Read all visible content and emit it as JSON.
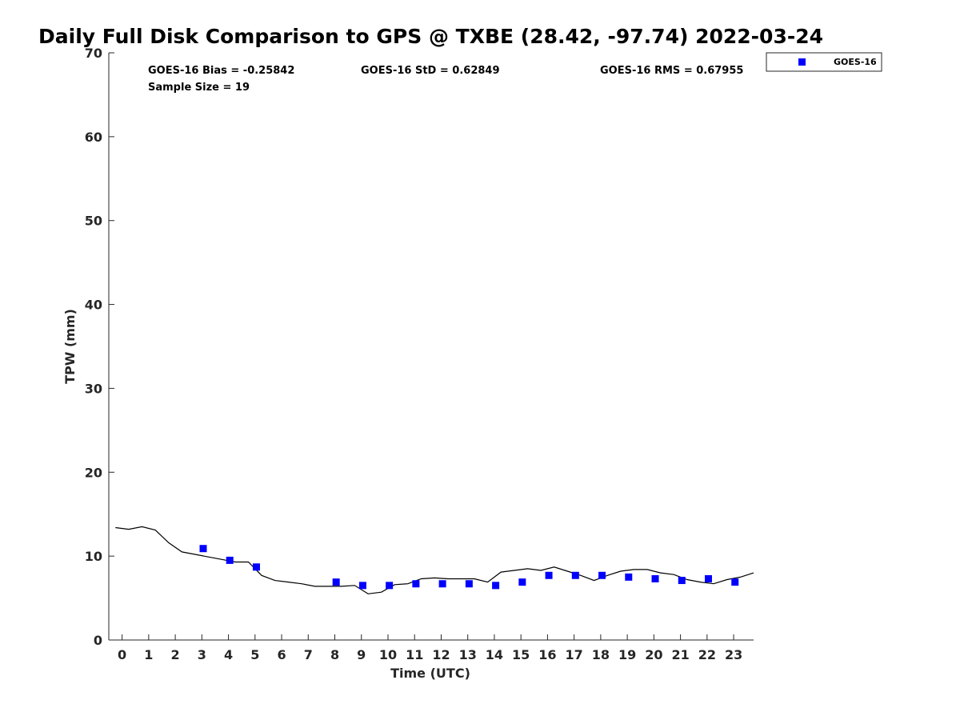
{
  "chart_data": {
    "type": "scatter",
    "title": "Daily Full Disk Comparison to GPS @ TXBE (28.42, -97.74) 2022-03-24",
    "xlabel": "Time (UTC)",
    "ylabel": "TPW (mm)",
    "xlim": [
      -0.5,
      23.75
    ],
    "ylim": [
      0,
      70
    ],
    "x_ticks": [
      0,
      1,
      2,
      3,
      4,
      5,
      6,
      7,
      8,
      9,
      10,
      11,
      12,
      13,
      14,
      15,
      16,
      17,
      18,
      19,
      20,
      21,
      22,
      23
    ],
    "y_ticks": [
      0,
      10,
      20,
      30,
      40,
      50,
      60,
      70
    ],
    "grid": false,
    "legend_position": "top-right",
    "stats": {
      "bias": "GOES-16 Bias = -0.25842",
      "std": "GOES-16 StD = 0.62849",
      "rms": "GOES-16 RMS = 0.67955",
      "sample_size": "Sample Size = 19"
    },
    "series": [
      {
        "name": "GOES-16",
        "type": "scatter",
        "marker": "square",
        "color": "#0000ff",
        "x": [
          3.05,
          4.05,
          5.05,
          8.05,
          9.05,
          10.05,
          11.05,
          12.05,
          13.05,
          14.05,
          15.05,
          16.05,
          17.05,
          18.05,
          19.05,
          20.05,
          21.05,
          22.05,
          23.05
        ],
        "y": [
          10.9,
          9.5,
          8.7,
          6.9,
          6.5,
          6.5,
          6.7,
          6.7,
          6.7,
          6.5,
          6.9,
          7.7,
          7.7,
          7.7,
          7.5,
          7.3,
          7.1,
          7.3,
          6.9
        ]
      },
      {
        "type": "line",
        "color": "#000000",
        "x": [
          -0.25,
          0.25,
          0.75,
          1.25,
          1.75,
          2.25,
          2.75,
          3.25,
          3.75,
          4.25,
          4.75,
          5.25,
          5.75,
          6.25,
          6.75,
          7.25,
          7.75,
          8.25,
          8.75,
          9.25,
          9.75,
          10.25,
          10.75,
          11.25,
          11.75,
          12.25,
          12.75,
          13.25,
          13.75,
          14.25,
          14.75,
          15.25,
          15.75,
          16.25,
          16.75,
          17.25,
          17.75,
          18.25,
          18.75,
          19.25,
          19.75,
          20.25,
          20.75,
          21.25,
          21.75,
          22.25,
          22.75,
          23.25,
          23.75
        ],
        "y": [
          13.4,
          13.2,
          13.5,
          13.1,
          11.6,
          10.5,
          10.2,
          9.9,
          9.6,
          9.3,
          9.3,
          7.7,
          7.1,
          6.9,
          6.7,
          6.4,
          6.4,
          6.4,
          6.5,
          5.5,
          5.7,
          6.6,
          6.7,
          7.3,
          7.4,
          7.3,
          7.3,
          7.3,
          6.9,
          8.1,
          8.3,
          8.5,
          8.3,
          8.7,
          8.2,
          7.7,
          7.1,
          7.7,
          8.2,
          8.4,
          8.4,
          8.0,
          7.8,
          7.2,
          6.9,
          6.7,
          7.2,
          7.5,
          8.0
        ]
      }
    ]
  }
}
